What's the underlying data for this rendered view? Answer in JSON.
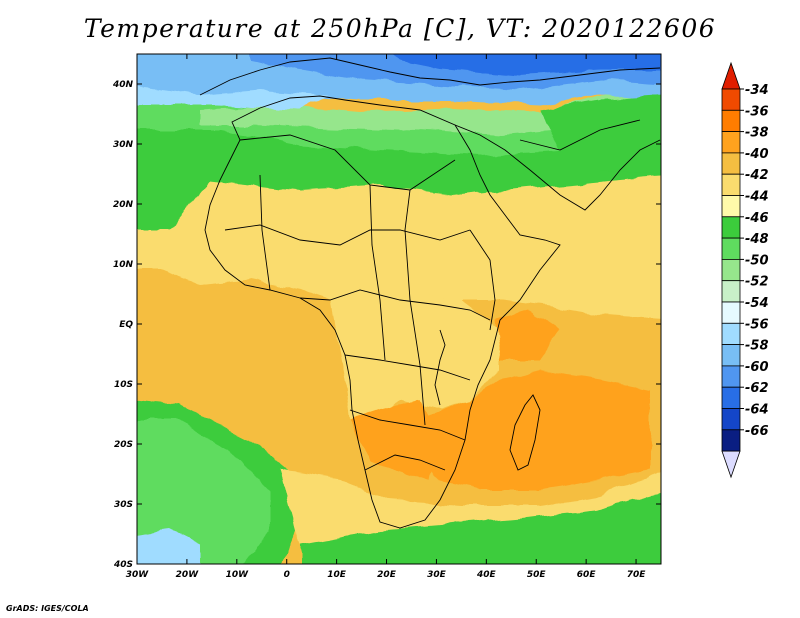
{
  "title": "Temperature at 250hPa [C], VT: 2020122606",
  "credit": "GrADS: IGES/COLA",
  "map": {
    "projection": "latlon",
    "lon_range": [
      -30,
      75
    ],
    "lat_range": [
      -40,
      45
    ],
    "x_ticks": [
      {
        "lon": -30,
        "label": "30W"
      },
      {
        "lon": -20,
        "label": "20W"
      },
      {
        "lon": -10,
        "label": "10W"
      },
      {
        "lon": 0,
        "label": "0"
      },
      {
        "lon": 10,
        "label": "10E"
      },
      {
        "lon": 20,
        "label": "20E"
      },
      {
        "lon": 30,
        "label": "30E"
      },
      {
        "lon": 40,
        "label": "40E"
      },
      {
        "lon": 50,
        "label": "50E"
      },
      {
        "lon": 60,
        "label": "60E"
      },
      {
        "lon": 70,
        "label": "70E"
      }
    ],
    "y_ticks": [
      {
        "lat": 40,
        "label": "40N"
      },
      {
        "lat": 30,
        "label": "30N"
      },
      {
        "lat": 20,
        "label": "20N"
      },
      {
        "lat": 10,
        "label": "10N"
      },
      {
        "lat": 0,
        "label": "EQ"
      },
      {
        "lat": -10,
        "label": "10S"
      },
      {
        "lat": -20,
        "label": "20S"
      },
      {
        "lat": -30,
        "label": "30S"
      },
      {
        "lat": -40,
        "label": "40S"
      }
    ]
  },
  "colorbar": {
    "labels": [
      "-34",
      "-36",
      "-38",
      "-40",
      "-42",
      "-44",
      "-46",
      "-48",
      "-50",
      "-52",
      "-54",
      "-56",
      "-58",
      "-60",
      "-62",
      "-64",
      "-66"
    ],
    "colors": [
      "#f04a00",
      "#ff7d00",
      "#ffa21e",
      "#f5be41",
      "#fadc6e",
      "#fffaaa",
      "#3ccc3c",
      "#5fdc5f",
      "#96e68c",
      "#c8f0c8",
      "#e6faff",
      "#a0dcff",
      "#78bef5",
      "#5096f0",
      "#286ee6",
      "#1446c8",
      "#0a1e82"
    ],
    "top_arrow_color": "#e01e00",
    "bottom_arrow_color": "#dcdcff"
  }
}
